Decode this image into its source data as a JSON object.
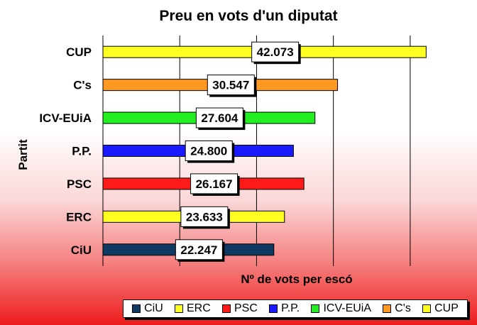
{
  "chart_data": {
    "type": "bar",
    "orientation": "horizontal",
    "title": "Preu en vots d'un diputat",
    "xlabel": "Nº de vots per escó",
    "ylabel": "Partit",
    "categories": [
      "CiU",
      "ERC",
      "PSC",
      "P.P.",
      "ICV-EUiA",
      "C's",
      "CUP"
    ],
    "values": [
      22247,
      23633,
      26167,
      24800,
      27604,
      30547,
      42073
    ],
    "value_labels": [
      "22.247",
      "23.633",
      "26.167",
      "24.800",
      "27.604",
      "30.547",
      "42.073"
    ],
    "colors": [
      "#0f3a62",
      "#ffff22",
      "#ff1a1a",
      "#1a1aff",
      "#22ee22",
      "#ff9922",
      "#ffff22"
    ],
    "xlim": [
      0,
      45000
    ],
    "grid": true,
    "legend": "bottom"
  }
}
